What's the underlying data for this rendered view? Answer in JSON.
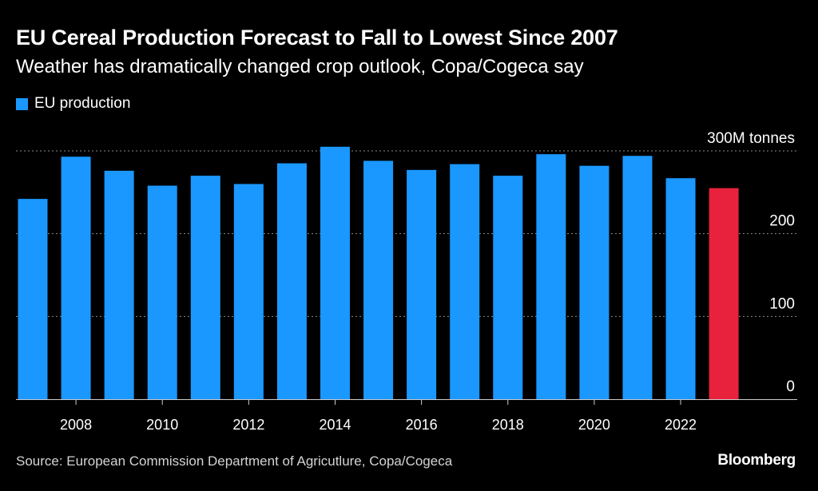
{
  "header": {
    "title": "EU Cereal Production Forecast to Fall to Lowest Since 2007",
    "subtitle": "Weather has dramatically changed crop outlook, Copa/Cogeca say"
  },
  "legend": {
    "label": "EU production"
  },
  "footer": {
    "source": "Source: European Commission Department of Agricutlure, Copa/Cogeca",
    "brand": "Bloomberg"
  },
  "colors": {
    "background": "#000000",
    "bar": "#1a98ff",
    "highlight": "#e8223c",
    "grid": "#8c8c8c",
    "text": "#ffffff"
  },
  "chart_data": {
    "type": "bar",
    "title": "EU Cereal Production Forecast to Fall to Lowest Since 2007",
    "subtitle": "Weather has dramatically changed crop outlook, Copa/Cogeca say",
    "xlabel": "",
    "ylabel": "",
    "categories": [
      "2007",
      "2008",
      "2009",
      "2010",
      "2011",
      "2012",
      "2013",
      "2014",
      "2015",
      "2016",
      "2017",
      "2018",
      "2019",
      "2020",
      "2021",
      "2022",
      "2023"
    ],
    "series": [
      {
        "name": "EU production",
        "values": [
          242,
          293,
          276,
          258,
          270,
          260,
          285,
          305,
          288,
          277,
          284,
          270,
          296,
          282,
          294,
          267,
          255
        ]
      }
    ],
    "highlight_index": 16,
    "ylim": [
      0,
      300
    ],
    "y_ticks": [
      {
        "value": 0,
        "label": "0"
      },
      {
        "value": 100,
        "label": "100"
      },
      {
        "value": 200,
        "label": "200"
      },
      {
        "value": 300,
        "label": "300M tonnes"
      }
    ],
    "x_tick_labels": [
      {
        "index": 1,
        "label": "2008"
      },
      {
        "index": 3,
        "label": "2010"
      },
      {
        "index": 5,
        "label": "2012"
      },
      {
        "index": 7,
        "label": "2014"
      },
      {
        "index": 9,
        "label": "2016"
      },
      {
        "index": 11,
        "label": "2018"
      },
      {
        "index": 13,
        "label": "2020"
      },
      {
        "index": 15,
        "label": "2022"
      }
    ],
    "grid": true,
    "legend_position": "top-left"
  }
}
